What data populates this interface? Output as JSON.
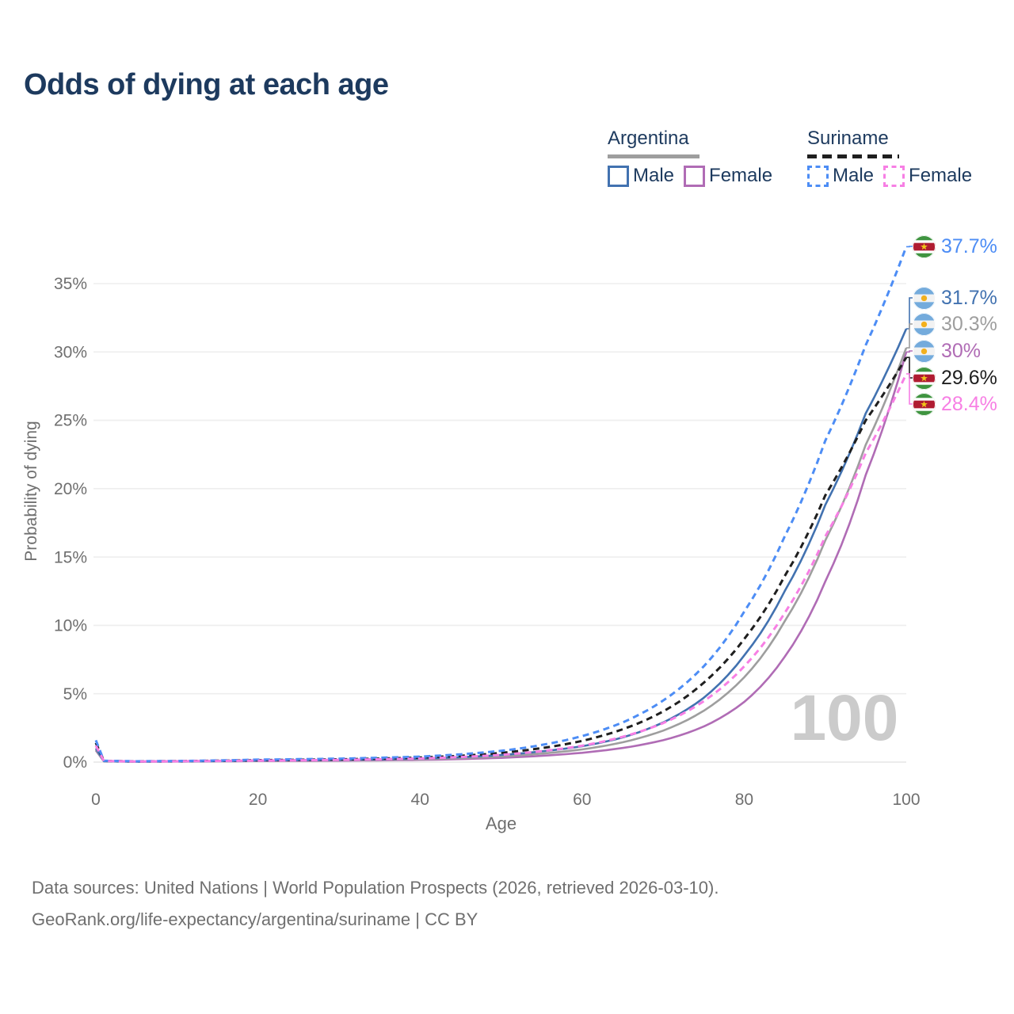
{
  "title": "Odds of dying at each age",
  "legend": {
    "groups": [
      {
        "name": "Argentina",
        "line_style": "solid",
        "rule_color": "#9e9e9e",
        "items": [
          {
            "label": "Male",
            "color": "#4272b0"
          },
          {
            "label": "Female",
            "color": "#b06cb5"
          }
        ]
      },
      {
        "name": "Suriname",
        "line_style": "dashed",
        "rule_color": "#1f1f1f",
        "items": [
          {
            "label": "Male",
            "color": "#4d8df5"
          },
          {
            "label": "Female",
            "color": "#f77fe4"
          }
        ]
      }
    ]
  },
  "chart_data": {
    "type": "line",
    "title": "Odds of dying at each age",
    "xlabel": "Age",
    "ylabel": "Probability of dying",
    "xlim": [
      0,
      100
    ],
    "ylim": [
      0,
      38
    ],
    "grid": true,
    "legend_position": "top-right",
    "x_ticks": [
      "0",
      "20",
      "40",
      "60",
      "80",
      "100"
    ],
    "x_tick_values": [
      0,
      20,
      40,
      60,
      80,
      100
    ],
    "y_ticks": [
      "0%",
      "5%",
      "10%",
      "15%",
      "20%",
      "25%",
      "30%",
      "35%"
    ],
    "y_tick_values": [
      0,
      5,
      10,
      15,
      20,
      25,
      30,
      35
    ],
    "hover_age_label": "100",
    "x": [
      0,
      1,
      5,
      10,
      20,
      30,
      40,
      45,
      50,
      55,
      60,
      65,
      70,
      75,
      80,
      85,
      90,
      95,
      100
    ],
    "series": [
      {
        "name": "Argentina Female",
        "country": "argentina",
        "sex": "female",
        "dashed": false,
        "color": "#b06cb5",
        "label_color": "#b06cb5",
        "end_label": "30%",
        "values": [
          0.85,
          0.05,
          0.03,
          0.04,
          0.08,
          0.1,
          0.16,
          0.22,
          0.31,
          0.46,
          0.68,
          1.03,
          1.6,
          2.6,
          4.4,
          7.7,
          13.2,
          21.0,
          30.0
        ]
      },
      {
        "name": "Argentina Both sexes",
        "country": "argentina",
        "sex": "total",
        "dashed": false,
        "color": "#9e9e9e",
        "label_color": "#9e9e9e",
        "end_label": "30.3%",
        "values": [
          0.9,
          0.06,
          0.035,
          0.045,
          0.1,
          0.13,
          0.21,
          0.29,
          0.42,
          0.62,
          0.93,
          1.45,
          2.3,
          3.75,
          6.2,
          10.3,
          16.2,
          23.2,
          30.3
        ]
      },
      {
        "name": "Argentina Male",
        "country": "argentina",
        "sex": "male",
        "dashed": false,
        "color": "#4272b0",
        "label_color": "#4272b0",
        "end_label": "31.7%",
        "values": [
          1.0,
          0.07,
          0.04,
          0.05,
          0.12,
          0.16,
          0.26,
          0.36,
          0.52,
          0.78,
          1.16,
          1.8,
          2.9,
          4.7,
          7.8,
          12.5,
          18.8,
          25.5,
          31.7
        ]
      },
      {
        "name": "Suriname Both sexes",
        "country": "suriname",
        "sex": "total",
        "dashed": true,
        "color": "#1f1f1f",
        "label_color": "#1f1f1f",
        "end_label": "29.6%",
        "values": [
          1.4,
          0.09,
          0.05,
          0.07,
          0.14,
          0.2,
          0.33,
          0.46,
          0.67,
          1.02,
          1.55,
          2.4,
          3.7,
          5.8,
          9.0,
          13.6,
          19.5,
          25.0,
          29.6
        ]
      },
      {
        "name": "Suriname Male",
        "country": "suriname",
        "sex": "male",
        "dashed": true,
        "color": "#4d8df5",
        "label_color": "#4d8df5",
        "end_label": "37.7%",
        "values": [
          1.6,
          0.1,
          0.06,
          0.08,
          0.18,
          0.25,
          0.4,
          0.57,
          0.82,
          1.25,
          1.9,
          2.9,
          4.5,
          7.0,
          11.0,
          16.5,
          23.5,
          30.5,
          37.7
        ]
      },
      {
        "name": "Suriname Female",
        "country": "suriname",
        "sex": "female",
        "dashed": true,
        "color": "#f77fe4",
        "label_color": "#f77fe4",
        "end_label": "28.4%",
        "values": [
          1.2,
          0.08,
          0.045,
          0.06,
          0.11,
          0.16,
          0.26,
          0.37,
          0.53,
          0.8,
          1.2,
          1.85,
          2.85,
          4.45,
          7.0,
          10.9,
          16.5,
          22.6,
          28.4
        ]
      }
    ]
  },
  "flags": {
    "argentina": {
      "band": "#74abdc",
      "white": "#f2f2f2",
      "sun": "#f2b01e"
    },
    "suriname": {
      "green": "#3f9440",
      "white": "#ffffff",
      "red": "#b01c31",
      "star": "#f0c619"
    }
  },
  "footer": {
    "line1": "Data sources: United Nations | World Population Prospects (2026, retrieved 2026-03-10).",
    "line2": "GeoRank.org/life-expectancy/argentina/suriname | CC BY"
  }
}
